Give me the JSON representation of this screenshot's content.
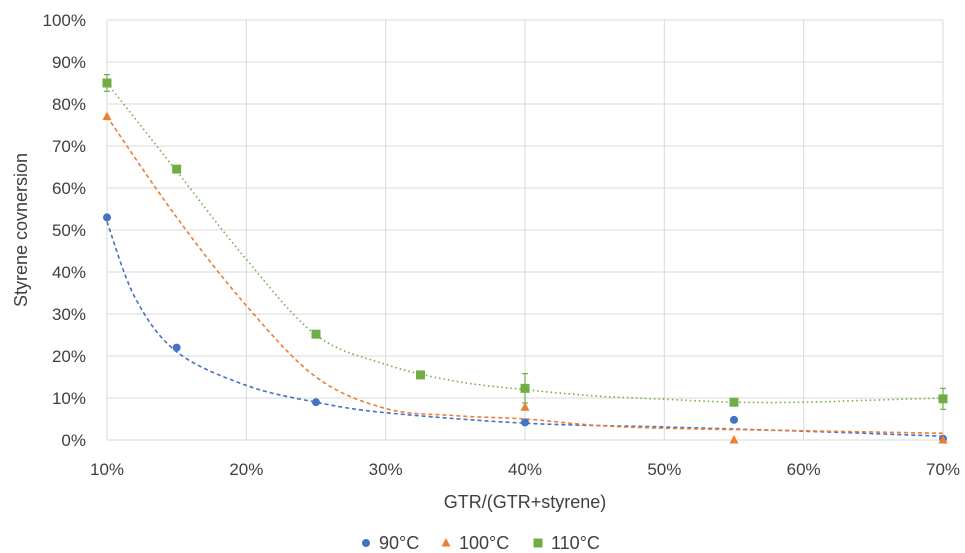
{
  "chart_data": {
    "type": "scatter",
    "title": "",
    "xlabel": "GTR/(GTR+styrene)",
    "ylabel": "Styrene covnersion",
    "xlim": [
      0.1,
      0.7
    ],
    "ylim": [
      0,
      1
    ],
    "x_ticks": [
      "10%",
      "20%",
      "30%",
      "40%",
      "50%",
      "60%",
      "70%"
    ],
    "y_ticks": [
      "0%",
      "10%",
      "20%",
      "30%",
      "40%",
      "50%",
      "60%",
      "70%",
      "80%",
      "90%",
      "100%"
    ],
    "grid": true,
    "legend_position": "bottom",
    "series": [
      {
        "name": "90°C",
        "color": "#4472C4",
        "marker": "circle",
        "trendline": "dashed",
        "x": [
          0.1,
          0.15,
          0.25,
          0.4,
          0.55,
          0.7
        ],
        "y": [
          0.53,
          0.22,
          0.09,
          0.042,
          0.048,
          0.003
        ],
        "trend_x": [
          0.1,
          0.12,
          0.15,
          0.2,
          0.25,
          0.3,
          0.4,
          0.5,
          0.6,
          0.7
        ],
        "trend_y": [
          0.52,
          0.34,
          0.21,
          0.13,
          0.09,
          0.065,
          0.04,
          0.031,
          0.021,
          0.009
        ]
      },
      {
        "name": "100°C",
        "color": "#ED7D31",
        "marker": "triangle",
        "trendline": "dashed",
        "x": [
          0.1,
          0.4,
          0.55,
          0.7
        ],
        "y": [
          0.77,
          0.078,
          0.0,
          0.0
        ],
        "trend_x": [
          0.1,
          0.15,
          0.2,
          0.25,
          0.3,
          0.35,
          0.4,
          0.45,
          0.5,
          0.6,
          0.7
        ],
        "trend_y": [
          0.77,
          0.53,
          0.32,
          0.15,
          0.075,
          0.058,
          0.05,
          0.035,
          0.028,
          0.022,
          0.016
        ]
      },
      {
        "name": "110°C",
        "color": "#70AD47",
        "marker": "square",
        "trendline": "dotted",
        "x": [
          0.1,
          0.15,
          0.25,
          0.325,
          0.4,
          0.55,
          0.7
        ],
        "y": [
          0.85,
          0.645,
          0.252,
          0.155,
          0.123,
          0.09,
          0.098
        ],
        "error": [
          0.02,
          0,
          0,
          0,
          0.035,
          0,
          0.025
        ],
        "trend_x": [
          0.1,
          0.15,
          0.2,
          0.25,
          0.3,
          0.35,
          0.4,
          0.45,
          0.5,
          0.55,
          0.6,
          0.65,
          0.7
        ],
        "trend_y": [
          0.85,
          0.64,
          0.43,
          0.25,
          0.18,
          0.14,
          0.12,
          0.105,
          0.097,
          0.09,
          0.09,
          0.095,
          0.1
        ]
      }
    ]
  }
}
